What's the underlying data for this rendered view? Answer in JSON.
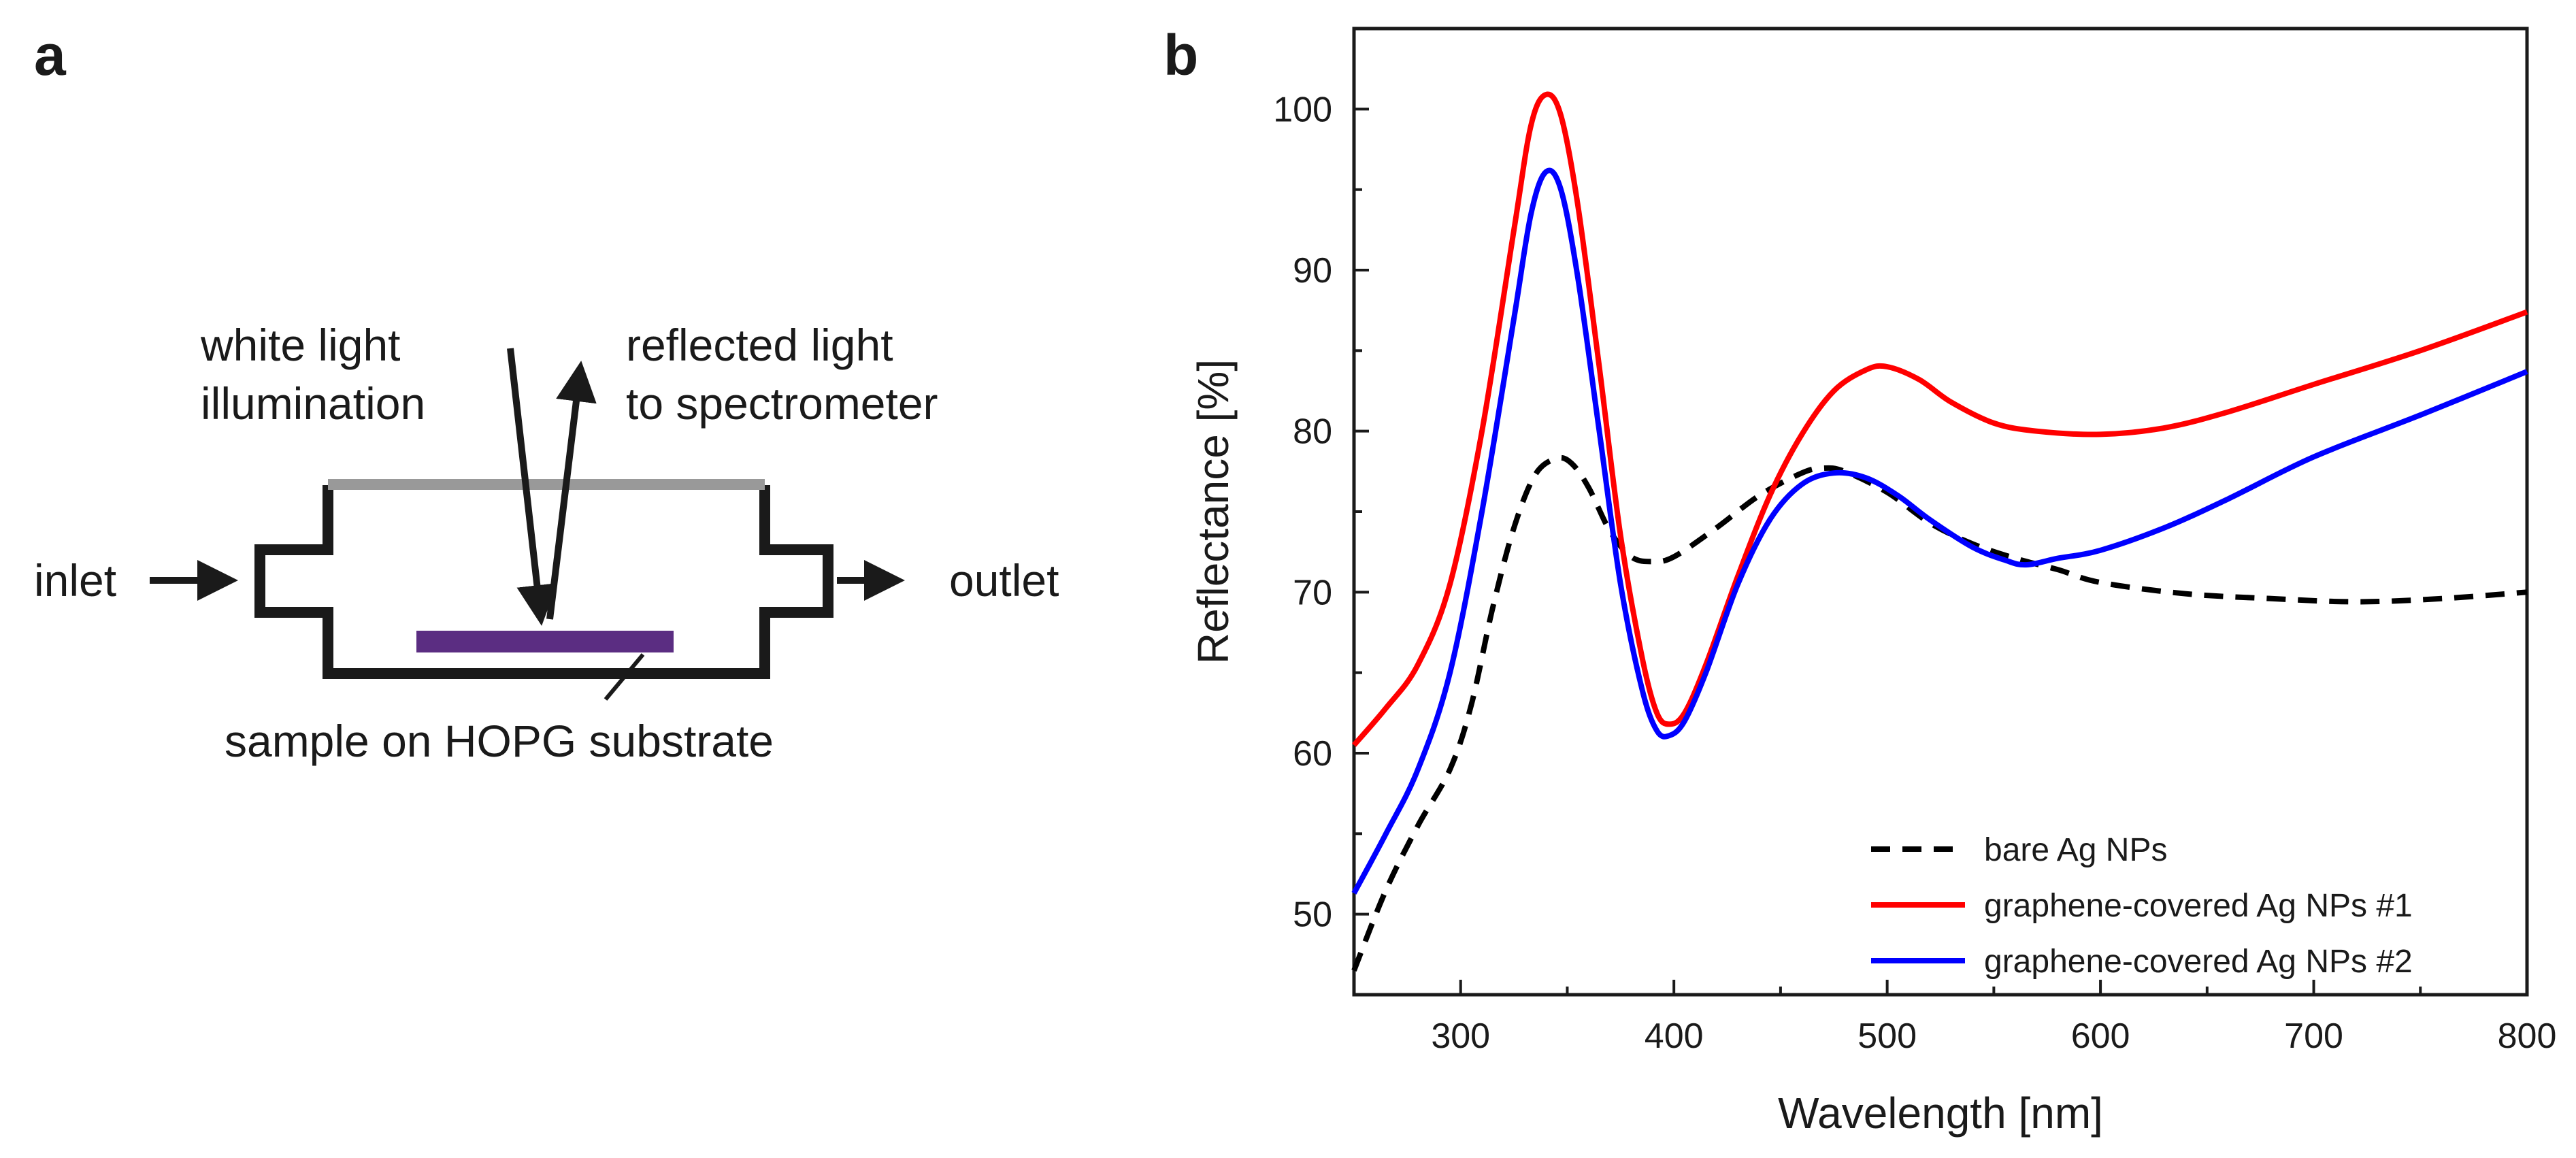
{
  "panel_a": {
    "letter": "a",
    "labels": {
      "white_light_line1": "white light",
      "white_light_line2": "illumination",
      "reflected_line1": "reflected light",
      "reflected_line2": "to spectrometer",
      "inlet": "inlet",
      "outlet": "outlet",
      "sample": "sample on HOPG substrate"
    },
    "colors": {
      "cell_outline": "#1a1a1a",
      "window": "#999999",
      "sample": "#5b2d82"
    }
  },
  "panel_b": {
    "letter": "b"
  },
  "chart_data": {
    "type": "line",
    "title": "",
    "xlabel": "Wavelength [nm]",
    "ylabel": "Reflectance [%]",
    "xlim": [
      250,
      800
    ],
    "ylim": [
      45,
      105
    ],
    "xticks": [
      300,
      400,
      500,
      600,
      700,
      800
    ],
    "yticks": [
      50,
      60,
      70,
      80,
      90,
      100
    ],
    "x_minor_step": 50,
    "y_minor_step": 5,
    "grid": false,
    "legend_position": "bottom-right",
    "series": [
      {
        "name": "bare Ag NPs",
        "color": "#000000",
        "style": "dashed",
        "points": [
          [
            250,
            46.5
          ],
          [
            265,
            51.5
          ],
          [
            280,
            55.5
          ],
          [
            295,
            59
          ],
          [
            305,
            63
          ],
          [
            315,
            69
          ],
          [
            325,
            74
          ],
          [
            335,
            77.3
          ],
          [
            345,
            78.3
          ],
          [
            352,
            78
          ],
          [
            360,
            76.5
          ],
          [
            370,
            73.8
          ],
          [
            380,
            72.2
          ],
          [
            390,
            71.9
          ],
          [
            400,
            72.2
          ],
          [
            420,
            74
          ],
          [
            440,
            76
          ],
          [
            460,
            77.4
          ],
          [
            470,
            77.7
          ],
          [
            480,
            77.5
          ],
          [
            500,
            76.2
          ],
          [
            520,
            74.3
          ],
          [
            540,
            73
          ],
          [
            560,
            72.1
          ],
          [
            580,
            71.4
          ],
          [
            600,
            70.6
          ],
          [
            640,
            69.9
          ],
          [
            680,
            69.6
          ],
          [
            720,
            69.4
          ],
          [
            760,
            69.6
          ],
          [
            800,
            70
          ]
        ]
      },
      {
        "name": "graphene-covered Ag NPs #1",
        "color": "#ff0000",
        "style": "solid",
        "points": [
          [
            250,
            60.5
          ],
          [
            265,
            62.8
          ],
          [
            280,
            65.5
          ],
          [
            295,
            70.5
          ],
          [
            310,
            80
          ],
          [
            325,
            92.5
          ],
          [
            333,
            99
          ],
          [
            340,
            100.9
          ],
          [
            347,
            99.6
          ],
          [
            355,
            94
          ],
          [
            365,
            84
          ],
          [
            375,
            73.5
          ],
          [
            385,
            66
          ],
          [
            392,
            62.5
          ],
          [
            398,
            61.8
          ],
          [
            405,
            62.5
          ],
          [
            415,
            65.5
          ],
          [
            430,
            71
          ],
          [
            445,
            76
          ],
          [
            460,
            79.8
          ],
          [
            475,
            82.5
          ],
          [
            490,
            83.8
          ],
          [
            500,
            84
          ],
          [
            515,
            83.2
          ],
          [
            530,
            81.8
          ],
          [
            550,
            80.5
          ],
          [
            570,
            80
          ],
          [
            600,
            79.8
          ],
          [
            630,
            80.2
          ],
          [
            660,
            81.2
          ],
          [
            700,
            82.9
          ],
          [
            750,
            85
          ],
          [
            800,
            87.4
          ]
        ]
      },
      {
        "name": "graphene-covered Ag NPs #2",
        "color": "#0000ff",
        "style": "solid",
        "points": [
          [
            250,
            51.3
          ],
          [
            265,
            55
          ],
          [
            280,
            59
          ],
          [
            295,
            65
          ],
          [
            310,
            75
          ],
          [
            325,
            87
          ],
          [
            333,
            93.5
          ],
          [
            340,
            96.1
          ],
          [
            347,
            95
          ],
          [
            355,
            89.5
          ],
          [
            365,
            80
          ],
          [
            375,
            70.5
          ],
          [
            385,
            64
          ],
          [
            392,
            61.4
          ],
          [
            398,
            61.1
          ],
          [
            405,
            62
          ],
          [
            415,
            65
          ],
          [
            430,
            70.5
          ],
          [
            445,
            74.5
          ],
          [
            460,
            76.7
          ],
          [
            475,
            77.4
          ],
          [
            490,
            77.1
          ],
          [
            505,
            76
          ],
          [
            520,
            74.5
          ],
          [
            540,
            72.8
          ],
          [
            555,
            72
          ],
          [
            565,
            71.7
          ],
          [
            580,
            72.1
          ],
          [
            600,
            72.6
          ],
          [
            630,
            74
          ],
          [
            660,
            75.8
          ],
          [
            700,
            78.4
          ],
          [
            750,
            81
          ],
          [
            800,
            83.7
          ]
        ]
      }
    ]
  }
}
